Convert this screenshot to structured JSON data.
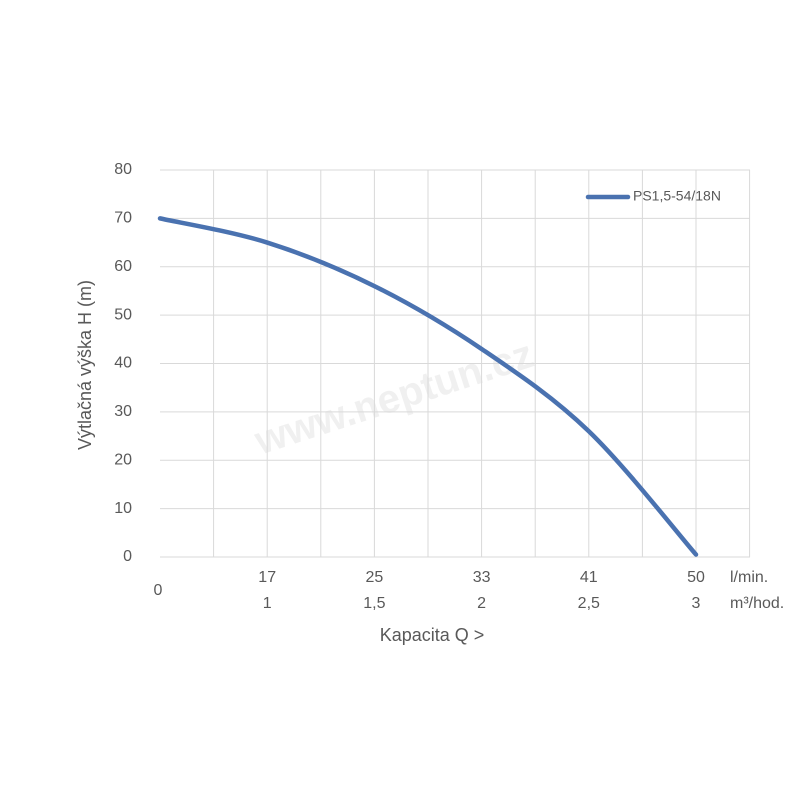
{
  "chart_data": {
    "type": "line",
    "y_label": "Výtlačná výška H (m)",
    "x_label": "Kapacita Q >",
    "categories": [
      "0",
      "17",
      "25",
      "33",
      "41",
      "50"
    ],
    "categories_2": [
      null,
      "1",
      "1,5",
      "2",
      "2,5",
      "3"
    ],
    "x_unit": "l/min.",
    "x_unit_2": "m³/hod.",
    "watermark": "www.neptun.cz",
    "series": [
      {
        "name": "PS1,5-54/18N",
        "color": "#4a72b0",
        "values": [
          70,
          65,
          56,
          43,
          26,
          0.5
        ]
      }
    ],
    "ylim": [
      0,
      80
    ],
    "yticks": [
      0,
      10,
      20,
      30,
      40,
      50,
      60,
      70,
      80
    ],
    "grid": true,
    "legend": "top-right"
  }
}
